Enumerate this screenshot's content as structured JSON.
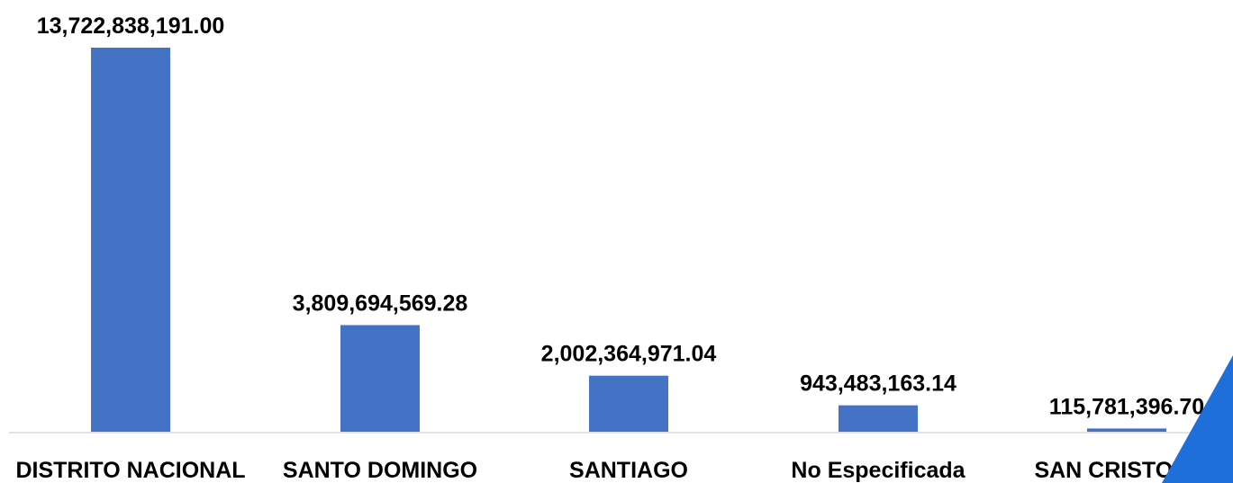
{
  "chart_data": {
    "type": "bar",
    "title": "",
    "xlabel": "",
    "ylabel": "",
    "categories": [
      "DISTRITO NACIONAL",
      "SANTO DOMINGO",
      "SANTIAGO",
      "No Especificada",
      "SAN CRISTOBAL"
    ],
    "values": [
      13722838191.0,
      3809694569.28,
      2002364971.04,
      943483163.14,
      115781396.7
    ],
    "value_labels": [
      "13,722,838,191.00",
      "3,809,694,569.28",
      "2,002,364,971.04",
      "943,483,163.14",
      "115,781,396.70"
    ],
    "ylim": [
      0,
      13722838191.0
    ],
    "grid": false,
    "legend": "none",
    "colors": {
      "bar": "#4472c4",
      "text": "#000000",
      "baseline": "#d9d9d9",
      "corner_accent": "#1e6fd9"
    }
  }
}
